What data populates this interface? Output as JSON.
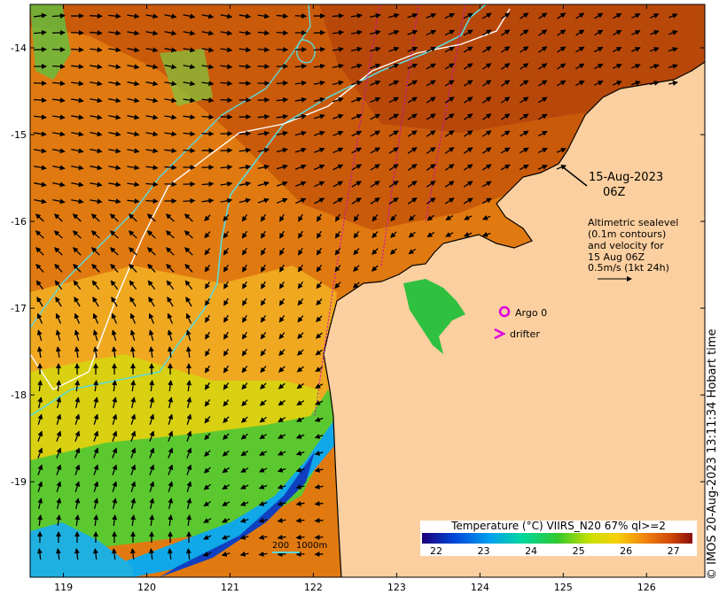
{
  "map": {
    "date_label": "15-Aug-2023",
    "time_label": "06Z",
    "legend_lines": [
      "Altimetric sealevel",
      "(0.1m contours)",
      "and velocity for",
      "15 Aug 06Z",
      "0.5m/s (1kt 24h)"
    ],
    "argo_label": "Argo 0",
    "drifter_label": "drifter",
    "depth_scale": {
      "first": "200",
      "second": "1000m"
    },
    "colorbar": {
      "title": "Temperature (°C) VIIRS_N20 67% ql>=2",
      "ticks": [
        "22",
        "23",
        "24",
        "25",
        "26",
        "27"
      ],
      "min": 21.7,
      "max": 27.4
    },
    "lon_ticks": [
      "119",
      "120",
      "121",
      "122",
      "123",
      "124",
      "125",
      "126"
    ],
    "lat_ticks": [
      "-14",
      "-15",
      "-16",
      "-17",
      "-18",
      "-19"
    ],
    "lon_range": [
      118.6,
      126.7
    ],
    "lat_range": [
      -13.5,
      -20.1
    ],
    "credit": "© IMOS 20-Aug-2023 13:11:34 Hobart time",
    "colors": {
      "land": "#fbcf9f",
      "argo_marker": "#e000e0",
      "drifter_marker": "#e000e0",
      "isobath_200": "#5ed8d8",
      "isobath_1000": "#ffffff",
      "track": "#cc00cc"
    }
  }
}
